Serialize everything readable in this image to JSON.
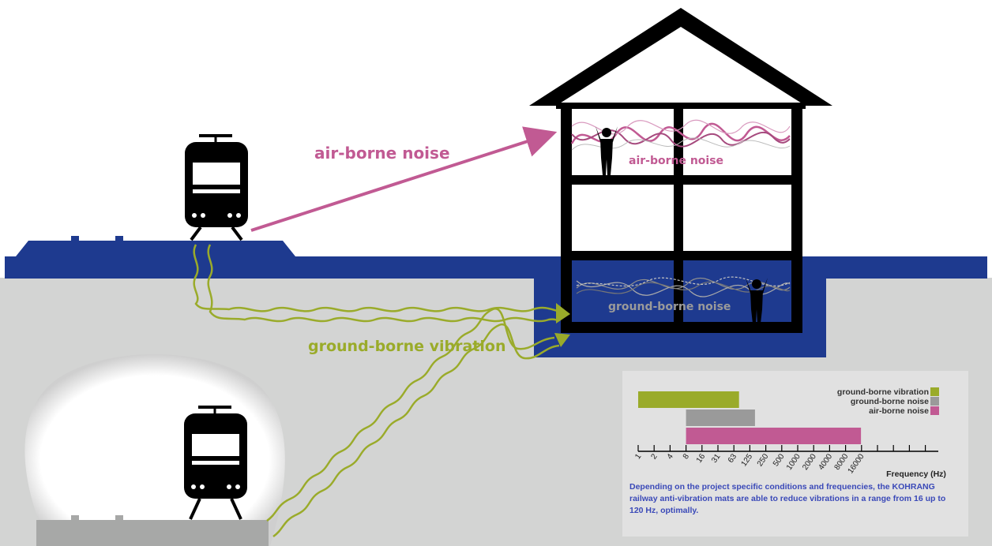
{
  "labels": {
    "airborne_noise": "air-borne noise",
    "airborne_noise_room": "air-borne noise",
    "groundborne_noise_room": "ground-borne noise",
    "groundborne_vibration": "ground-borne vibration"
  },
  "colors": {
    "airborne": "#c15a93",
    "groundborne_vibration": "#9aab2a",
    "groundborne_noise": "#9a9a9a",
    "ground_surface": "#1e3a8f",
    "soil": "#d3d4d3",
    "note_text": "#3a49b8"
  },
  "chart_data": {
    "type": "bar",
    "orientation": "horizontal",
    "xlabel": "Frequency (Hz)",
    "x_scale": "log2",
    "x_ticks": [
      "1",
      "2",
      "4",
      "8",
      "16",
      "31",
      "63",
      "125",
      "250",
      "500",
      "1000",
      "2000",
      "4000",
      "8000",
      "16000"
    ],
    "series": [
      {
        "name": "ground-borne vibration",
        "color": "#9aab2a",
        "range": [
          1,
          80
        ]
      },
      {
        "name": "ground-borne noise",
        "color": "#9a9a9a",
        "range": [
          8,
          160
        ]
      },
      {
        "name": "air-borne noise",
        "color": "#c15a93",
        "range": [
          8,
          16000
        ]
      }
    ],
    "legend_position": "top-right"
  },
  "note": "Depending on the project specific conditions and frequencies, the KOHRANG railway anti-vibration mats are able to reduce vibrations in a range from 16 up to 120 Hz, optimally."
}
